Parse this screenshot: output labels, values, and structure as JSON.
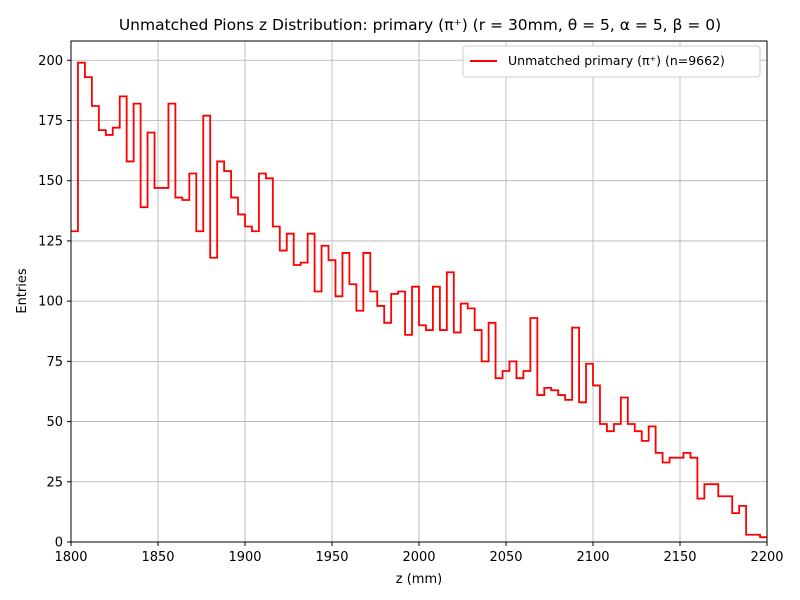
{
  "chart_data": {
    "type": "step-histogram",
    "title": "Unmatched Pions z Distribution: primary (π⁺) (r = 30mm, θ = 5, α = 5, β = 0)",
    "xlabel": "z (mm)",
    "ylabel": "Entries",
    "xlim": [
      1800,
      2200
    ],
    "ylim": [
      0,
      208
    ],
    "x_ticks": [
      1800,
      1850,
      1900,
      1950,
      2000,
      2050,
      2100,
      2150,
      2200
    ],
    "y_ticks": [
      0,
      25,
      50,
      75,
      100,
      125,
      150,
      175,
      200
    ],
    "grid": true,
    "legend_position": "top-right",
    "bin_width": 4,
    "series": [
      {
        "name": "Unmatched primary (π⁺) (n=9662)",
        "color": "#ff0000",
        "bin_edges_start": 1800,
        "values": [
          129,
          199,
          193,
          181,
          171,
          169,
          172,
          185,
          158,
          182,
          139,
          170,
          147,
          147,
          182,
          143,
          142,
          153,
          129,
          177,
          118,
          158,
          154,
          143,
          136,
          131,
          129,
          153,
          151,
          131,
          121,
          128,
          115,
          116,
          128,
          104,
          123,
          117,
          102,
          120,
          107,
          96,
          120,
          104,
          98,
          91,
          103,
          104,
          86,
          106,
          90,
          88,
          106,
          88,
          112,
          87,
          99,
          97,
          88,
          75,
          91,
          68,
          71,
          75,
          68,
          71,
          93,
          61,
          64,
          63,
          61,
          59,
          89,
          58,
          74,
          65,
          49,
          46,
          49,
          60,
          49,
          46,
          42,
          48,
          37,
          33,
          35,
          35,
          37,
          35,
          18,
          24,
          24,
          19,
          19,
          12,
          15,
          3,
          3,
          2
        ]
      }
    ]
  }
}
